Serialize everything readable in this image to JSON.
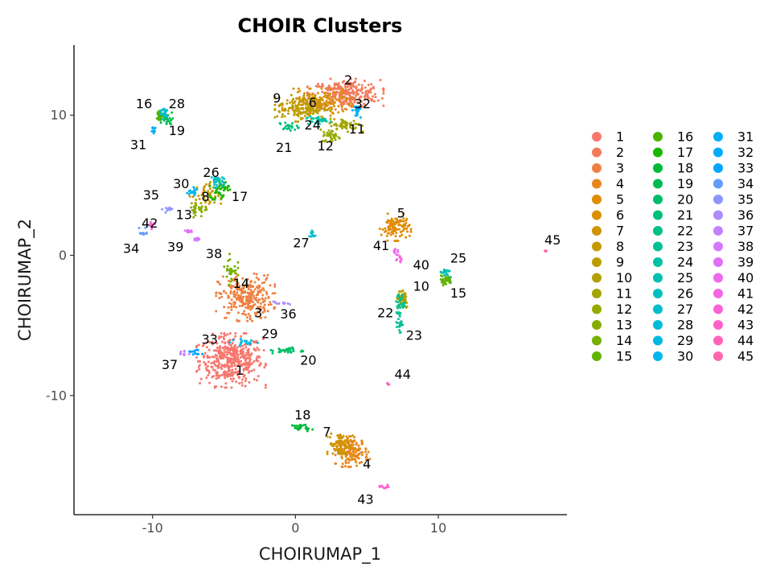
{
  "chart_data": {
    "type": "scatter",
    "title": "CHOIR Clusters",
    "xlabel": "CHOIRUMAP_1",
    "ylabel": "CHOIRUMAP_2",
    "xlim": [
      -15.5,
      19
    ],
    "ylim": [
      -18.5,
      15
    ],
    "xticks": [
      -10,
      0,
      10
    ],
    "yticks": [
      -10,
      0,
      10
    ],
    "xtick_labels": [
      "-10",
      "0",
      "10"
    ],
    "ytick_labels": [
      "-10",
      "0",
      "10"
    ],
    "grid": false,
    "legend_position": "right",
    "legend_entries": [
      "1",
      "2",
      "3",
      "4",
      "5",
      "6",
      "7",
      "8",
      "9",
      "10",
      "11",
      "12",
      "13",
      "14",
      "15",
      "16",
      "17",
      "18",
      "19",
      "20",
      "21",
      "22",
      "23",
      "24",
      "25",
      "26",
      "27",
      "28",
      "29",
      "30",
      "31",
      "32",
      "33",
      "34",
      "35",
      "36",
      "37",
      "38",
      "39",
      "40",
      "41",
      "42",
      "43",
      "44",
      "45"
    ],
    "colors": [
      "#F8766D",
      "#F37B59",
      "#ED8141",
      "#E7861B",
      "#E08B00",
      "#D89000",
      "#CF9400",
      "#C59900",
      "#BB9D00",
      "#B0A100",
      "#A3A500",
      "#96A900",
      "#87AC00",
      "#76AF00",
      "#62B200",
      "#49B500",
      "#1BB700",
      "#00BA38",
      "#00BC52",
      "#00BE66",
      "#00BF78",
      "#00C088",
      "#00C097",
      "#00C1A5",
      "#00C0B2",
      "#00BFBF",
      "#00BECB",
      "#00BCD7",
      "#00B9E2",
      "#00B5EC",
      "#00B0F6",
      "#00ABFD",
      "#00A5FF",
      "#619CFF",
      "#8F94FF",
      "#AC8CFF",
      "#C282FF",
      "#D478FF",
      "#E26EF7",
      "#ED68ED",
      "#F565E3",
      "#FC61D5",
      "#FF61C8",
      "#FF63BB",
      "#FF67AC"
    ],
    "clusters": [
      {
        "id": 1,
        "center": [
          -4.5,
          -7.5
        ],
        "spread": [
          2.0,
          1.6
        ],
        "n": 420
      },
      {
        "id": 2,
        "center": [
          3.5,
          11.5
        ],
        "spread": [
          2.2,
          0.9
        ],
        "n": 300
      },
      {
        "id": 3,
        "center": [
          -3.5,
          -3.0
        ],
        "spread": [
          1.7,
          1.4
        ],
        "n": 280
      },
      {
        "id": 4,
        "center": [
          4.0,
          -14.0
        ],
        "spread": [
          1.0,
          0.9
        ],
        "n": 140
      },
      {
        "id": 5,
        "center": [
          7.0,
          2.0
        ],
        "spread": [
          0.9,
          0.8
        ],
        "n": 110
      },
      {
        "id": 6,
        "center": [
          1.5,
          10.8
        ],
        "spread": [
          2.0,
          0.9
        ],
        "n": 150
      },
      {
        "id": 7,
        "center": [
          3.2,
          -13.5
        ],
        "spread": [
          0.8,
          0.8
        ],
        "n": 90
      },
      {
        "id": 8,
        "center": [
          -6.3,
          4.2
        ],
        "spread": [
          0.9,
          0.9
        ],
        "n": 60
      },
      {
        "id": 9,
        "center": [
          0.5,
          10.5
        ],
        "spread": [
          1.6,
          0.8
        ],
        "n": 140
      },
      {
        "id": 10,
        "center": [
          7.5,
          -3.0
        ],
        "spread": [
          0.4,
          0.7
        ],
        "n": 40
      },
      {
        "id": 11,
        "center": [
          3.5,
          9.3
        ],
        "spread": [
          1.0,
          0.4
        ],
        "n": 60
      },
      {
        "id": 12,
        "center": [
          2.5,
          8.5
        ],
        "spread": [
          0.6,
          0.4
        ],
        "n": 35
      },
      {
        "id": 13,
        "center": [
          -6.8,
          3.3
        ],
        "spread": [
          0.6,
          0.5
        ],
        "n": 30
      },
      {
        "id": 14,
        "center": [
          -4.5,
          -1.0
        ],
        "spread": [
          0.4,
          0.9
        ],
        "n": 30
      },
      {
        "id": 15,
        "center": [
          10.5,
          -1.8
        ],
        "spread": [
          0.4,
          0.3
        ],
        "n": 30
      },
      {
        "id": 16,
        "center": [
          -9.5,
          10.0
        ],
        "spread": [
          0.4,
          0.4
        ],
        "n": 30
      },
      {
        "id": 17,
        "center": [
          -5.3,
          4.7
        ],
        "spread": [
          0.6,
          0.6
        ],
        "n": 40
      },
      {
        "id": 18,
        "center": [
          0.5,
          -12.3
        ],
        "spread": [
          0.6,
          0.2
        ],
        "n": 25
      },
      {
        "id": 19,
        "center": [
          -9.0,
          9.7
        ],
        "spread": [
          0.4,
          0.4
        ],
        "n": 25
      },
      {
        "id": 20,
        "center": [
          -0.5,
          -6.8
        ],
        "spread": [
          1.0,
          0.2
        ],
        "n": 30
      },
      {
        "id": 21,
        "center": [
          -0.5,
          9.2
        ],
        "spread": [
          0.6,
          0.3
        ],
        "n": 20
      },
      {
        "id": 22,
        "center": [
          7.3,
          -3.4
        ],
        "spread": [
          0.3,
          0.6
        ],
        "n": 25
      },
      {
        "id": 23,
        "center": [
          7.3,
          -4.8
        ],
        "spread": [
          0.2,
          0.6
        ],
        "n": 25
      },
      {
        "id": 24,
        "center": [
          1.5,
          9.6
        ],
        "spread": [
          0.8,
          0.3
        ],
        "n": 30
      },
      {
        "id": 25,
        "center": [
          10.5,
          -1.2
        ],
        "spread": [
          0.3,
          0.3
        ],
        "n": 20
      },
      {
        "id": 26,
        "center": [
          -5.6,
          5.3
        ],
        "spread": [
          0.5,
          0.4
        ],
        "n": 30
      },
      {
        "id": 27,
        "center": [
          1.2,
          1.5
        ],
        "spread": [
          0.2,
          0.3
        ],
        "n": 12
      },
      {
        "id": 28,
        "center": [
          -9.2,
          10.2
        ],
        "spread": [
          0.3,
          0.4
        ],
        "n": 20
      },
      {
        "id": 29,
        "center": [
          -3.5,
          -6.2
        ],
        "spread": [
          0.9,
          0.2
        ],
        "n": 18
      },
      {
        "id": 30,
        "center": [
          -7.2,
          4.5
        ],
        "spread": [
          0.4,
          0.3
        ],
        "n": 20
      },
      {
        "id": 31,
        "center": [
          -10.0,
          9.0
        ],
        "spread": [
          0.2,
          0.3
        ],
        "n": 12
      },
      {
        "id": 32,
        "center": [
          4.3,
          10.2
        ],
        "spread": [
          0.3,
          0.4
        ],
        "n": 20
      },
      {
        "id": 33,
        "center": [
          -7.0,
          -6.9
        ],
        "spread": [
          0.4,
          0.3
        ],
        "n": 15
      },
      {
        "id": 34,
        "center": [
          -10.6,
          1.6
        ],
        "spread": [
          0.3,
          0.3
        ],
        "n": 10
      },
      {
        "id": 35,
        "center": [
          -9.0,
          3.3
        ],
        "spread": [
          0.3,
          0.2
        ],
        "n": 10
      },
      {
        "id": 36,
        "center": [
          -1.0,
          -3.4
        ],
        "spread": [
          0.5,
          0.1
        ],
        "n": 10
      },
      {
        "id": 37,
        "center": [
          -7.8,
          -7.0
        ],
        "spread": [
          0.3,
          0.2
        ],
        "n": 10
      },
      {
        "id": 38,
        "center": [
          -6.9,
          1.2
        ],
        "spread": [
          0.2,
          0.2
        ],
        "n": 10
      },
      {
        "id": 39,
        "center": [
          -7.5,
          1.8
        ],
        "spread": [
          0.3,
          0.3
        ],
        "n": 10
      },
      {
        "id": 40,
        "center": [
          7.0,
          0.2
        ],
        "spread": [
          0.2,
          0.2
        ],
        "n": 10
      },
      {
        "id": 41,
        "center": [
          7.3,
          -0.3
        ],
        "spread": [
          0.2,
          0.2
        ],
        "n": 8
      },
      {
        "id": 42,
        "center": [
          -10.0,
          2.2
        ],
        "spread": [
          0.3,
          0.3
        ],
        "n": 8
      },
      {
        "id": 43,
        "center": [
          6.3,
          -16.5
        ],
        "spread": [
          0.4,
          0.1
        ],
        "n": 10
      },
      {
        "id": 44,
        "center": [
          6.5,
          -9.2
        ],
        "spread": [
          0.1,
          0.1
        ],
        "n": 4
      },
      {
        "id": 45,
        "center": [
          17.5,
          0.3
        ],
        "spread": [
          0.1,
          0.1
        ],
        "n": 4
      }
    ],
    "point_labels": [
      {
        "text": "1",
        "x": -3.9,
        "y": -8.2
      },
      {
        "text": "2",
        "x": 3.7,
        "y": 12.5
      },
      {
        "text": "3",
        "x": -2.6,
        "y": -4.1
      },
      {
        "text": "4",
        "x": 5.0,
        "y": -14.9
      },
      {
        "text": "5",
        "x": 7.4,
        "y": 3.0
      },
      {
        "text": "6",
        "x": 1.2,
        "y": 10.9
      },
      {
        "text": "7",
        "x": 2.2,
        "y": -12.6
      },
      {
        "text": "8",
        "x": -6.3,
        "y": 4.2
      },
      {
        "text": "9",
        "x": -1.3,
        "y": 11.2
      },
      {
        "text": "10",
        "x": 8.8,
        "y": -2.2
      },
      {
        "text": "11",
        "x": 4.3,
        "y": 9.0
      },
      {
        "text": "12",
        "x": 2.1,
        "y": 7.8
      },
      {
        "text": "13",
        "x": -7.8,
        "y": 2.9
      },
      {
        "text": "14",
        "x": -3.8,
        "y": -2.0
      },
      {
        "text": "15",
        "x": 11.4,
        "y": -2.7
      },
      {
        "text": "16",
        "x": -10.6,
        "y": 10.8
      },
      {
        "text": "17",
        "x": -3.9,
        "y": 4.2
      },
      {
        "text": "18",
        "x": 0.5,
        "y": -11.4
      },
      {
        "text": "19",
        "x": -8.3,
        "y": 8.9
      },
      {
        "text": "20",
        "x": 0.9,
        "y": -7.5
      },
      {
        "text": "21",
        "x": -0.8,
        "y": 7.7
      },
      {
        "text": "22",
        "x": 6.3,
        "y": -4.1
      },
      {
        "text": "23",
        "x": 8.3,
        "y": -5.7
      },
      {
        "text": "24",
        "x": 1.2,
        "y": 9.3
      },
      {
        "text": "25",
        "x": 11.4,
        "y": -0.2
      },
      {
        "text": "26",
        "x": -5.9,
        "y": 5.9
      },
      {
        "text": "27",
        "x": 0.4,
        "y": 0.9
      },
      {
        "text": "28",
        "x": -8.3,
        "y": 10.8
      },
      {
        "text": "29",
        "x": -1.8,
        "y": -5.6
      },
      {
        "text": "30",
        "x": -8.0,
        "y": 5.1
      },
      {
        "text": "31",
        "x": -11.0,
        "y": 7.9
      },
      {
        "text": "32",
        "x": 4.7,
        "y": 10.8
      },
      {
        "text": "33",
        "x": -6.0,
        "y": -6.0
      },
      {
        "text": "34",
        "x": -11.5,
        "y": 0.5
      },
      {
        "text": "35",
        "x": -10.1,
        "y": 4.3
      },
      {
        "text": "36",
        "x": -0.5,
        "y": -4.2
      },
      {
        "text": "37",
        "x": -8.8,
        "y": -7.8
      },
      {
        "text": "38",
        "x": -5.7,
        "y": 0.1
      },
      {
        "text": "39",
        "x": -8.4,
        "y": 0.6
      },
      {
        "text": "40",
        "x": 8.8,
        "y": -0.7
      },
      {
        "text": "41",
        "x": 6.0,
        "y": 0.7
      },
      {
        "text": "42",
        "x": -10.2,
        "y": 2.3
      },
      {
        "text": "43",
        "x": 4.9,
        "y": -17.4
      },
      {
        "text": "44",
        "x": 7.5,
        "y": -8.5
      },
      {
        "text": "45",
        "x": 18.0,
        "y": 1.1
      }
    ]
  }
}
